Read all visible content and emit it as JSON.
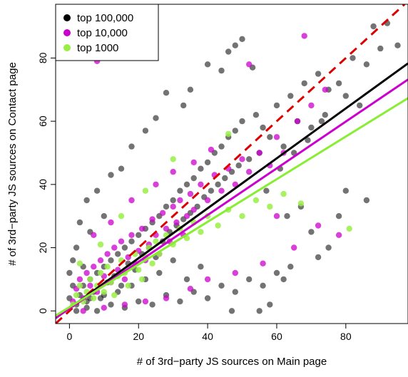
{
  "chart_data": {
    "type": "scatter",
    "title": "",
    "xlabel": "# of 3rd−party JS sources on Main page",
    "ylabel": "# of 3rd−party JS sources on Contact page",
    "xlim": [
      -4,
      98
    ],
    "ylim": [
      -4,
      97
    ],
    "x_ticks": [
      0,
      20,
      40,
      60,
      80
    ],
    "y_ticks": [
      0,
      20,
      40,
      60,
      80
    ],
    "x_tick_labels": [
      "0",
      "20",
      "40",
      "60",
      "80"
    ],
    "y_tick_labels": [
      "0",
      "20",
      "40",
      "60",
      "80"
    ],
    "grid": false,
    "legend_position": "top-left",
    "series": [
      {
        "name": "top 100,000",
        "color": "#000000",
        "marker": "circle",
        "alpha": 0.55,
        "points": [
          [
            2,
            2
          ],
          [
            3,
            5
          ],
          [
            4,
            8
          ],
          [
            5,
            3
          ],
          [
            6,
            10
          ],
          [
            7,
            6
          ],
          [
            8,
            12
          ],
          [
            9,
            4
          ],
          [
            10,
            14
          ],
          [
            11,
            9
          ],
          [
            12,
            16
          ],
          [
            13,
            11
          ],
          [
            14,
            18
          ],
          [
            15,
            8
          ],
          [
            16,
            20
          ],
          [
            17,
            15
          ],
          [
            18,
            22
          ],
          [
            19,
            13
          ],
          [
            20,
            24
          ],
          [
            21,
            18
          ],
          [
            22,
            26
          ],
          [
            23,
            20
          ],
          [
            24,
            28
          ],
          [
            25,
            17
          ],
          [
            26,
            30
          ],
          [
            27,
            22
          ],
          [
            28,
            33
          ],
          [
            29,
            25
          ],
          [
            30,
            35
          ],
          [
            31,
            27
          ],
          [
            32,
            38
          ],
          [
            33,
            29
          ],
          [
            34,
            40
          ],
          [
            35,
            31
          ],
          [
            36,
            42
          ],
          [
            37,
            33
          ],
          [
            38,
            45
          ],
          [
            39,
            36
          ],
          [
            40,
            47
          ],
          [
            41,
            38
          ],
          [
            42,
            50
          ],
          [
            43,
            40
          ],
          [
            44,
            52
          ],
          [
            45,
            42
          ],
          [
            46,
            55
          ],
          [
            47,
            44
          ],
          [
            48,
            57
          ],
          [
            49,
            46
          ],
          [
            50,
            60
          ],
          [
            52,
            48
          ],
          [
            54,
            62
          ],
          [
            55,
            50
          ],
          [
            56,
            58
          ],
          [
            58,
            55
          ],
          [
            60,
            65
          ],
          [
            62,
            52
          ],
          [
            64,
            68
          ],
          [
            66,
            60
          ],
          [
            68,
            72
          ],
          [
            70,
            58
          ],
          [
            72,
            75
          ],
          [
            74,
            62
          ],
          [
            75,
            70
          ],
          [
            78,
            72
          ],
          [
            80,
            68
          ],
          [
            82,
            80
          ],
          [
            84,
            65
          ],
          [
            86,
            78
          ],
          [
            88,
            90
          ],
          [
            90,
            83
          ],
          [
            92,
            91
          ],
          [
            95,
            84
          ],
          [
            80,
            38
          ],
          [
            78,
            30
          ],
          [
            86,
            35
          ],
          [
            72,
            17
          ],
          [
            75,
            20
          ],
          [
            62,
            10
          ],
          [
            70,
            25
          ],
          [
            58,
            2
          ],
          [
            50,
            86
          ],
          [
            48,
            84
          ],
          [
            44,
            76
          ],
          [
            46,
            82
          ],
          [
            40,
            78
          ],
          [
            53,
            77
          ],
          [
            35,
            70
          ],
          [
            28,
            69
          ],
          [
            33,
            65
          ],
          [
            25,
            61
          ],
          [
            22,
            57
          ],
          [
            18,
            52
          ],
          [
            15,
            45
          ],
          [
            12,
            43
          ],
          [
            8,
            38
          ],
          [
            5,
            35
          ],
          [
            10,
            30
          ],
          [
            3,
            28
          ],
          [
            6,
            25
          ],
          [
            2,
            20
          ],
          [
            1,
            16
          ],
          [
            4,
            14
          ],
          [
            0,
            12
          ],
          [
            1,
            8
          ],
          [
            0,
            4
          ],
          [
            2,
            0
          ],
          [
            5,
            1
          ],
          [
            8,
            0
          ],
          [
            12,
            2
          ],
          [
            16,
            1
          ],
          [
            20,
            3
          ],
          [
            24,
            2
          ],
          [
            28,
            5
          ],
          [
            32,
            3
          ],
          [
            36,
            6
          ],
          [
            40,
            4
          ],
          [
            44,
            8
          ],
          [
            48,
            6
          ],
          [
            52,
            10
          ],
          [
            56,
            8
          ],
          [
            60,
            12
          ],
          [
            64,
            14
          ],
          [
            55,
            0
          ],
          [
            63,
            30
          ],
          [
            67,
            33
          ],
          [
            57,
            38
          ],
          [
            61,
            45
          ],
          [
            65,
            50
          ],
          [
            69,
            54
          ],
          [
            73,
            60
          ],
          [
            47,
            0
          ],
          [
            38,
            14
          ],
          [
            34,
            10
          ],
          [
            30,
            16
          ],
          [
            26,
            12
          ],
          [
            22,
            10
          ],
          [
            18,
            8
          ],
          [
            14,
            6
          ],
          [
            10,
            5
          ],
          [
            6,
            4
          ]
        ]
      },
      {
        "name": "top 10,000",
        "color": "#cc00cc",
        "marker": "circle",
        "alpha": 0.75,
        "points": [
          [
            1,
            3
          ],
          [
            2,
            7
          ],
          [
            3,
            10
          ],
          [
            4,
            4
          ],
          [
            5,
            12
          ],
          [
            6,
            8
          ],
          [
            7,
            14
          ],
          [
            8,
            6
          ],
          [
            9,
            16
          ],
          [
            10,
            11
          ],
          [
            11,
            18
          ],
          [
            12,
            9
          ],
          [
            13,
            20
          ],
          [
            14,
            13
          ],
          [
            15,
            22
          ],
          [
            16,
            10
          ],
          [
            17,
            17
          ],
          [
            18,
            24
          ],
          [
            19,
            15
          ],
          [
            20,
            19
          ],
          [
            21,
            26
          ],
          [
            22,
            16
          ],
          [
            23,
            21
          ],
          [
            24,
            29
          ],
          [
            25,
            24
          ],
          [
            26,
            18
          ],
          [
            27,
            31
          ],
          [
            28,
            26
          ],
          [
            29,
            22
          ],
          [
            30,
            33
          ],
          [
            31,
            28
          ],
          [
            32,
            35
          ],
          [
            33,
            24
          ],
          [
            34,
            30
          ],
          [
            35,
            37
          ],
          [
            36,
            32
          ],
          [
            38,
            40
          ],
          [
            40,
            35
          ],
          [
            42,
            43
          ],
          [
            44,
            38
          ],
          [
            46,
            45
          ],
          [
            48,
            40
          ],
          [
            50,
            48
          ],
          [
            52,
            44
          ],
          [
            55,
            50
          ],
          [
            58,
            46
          ],
          [
            60,
            55
          ],
          [
            62,
            50
          ],
          [
            66,
            60
          ],
          [
            70,
            65
          ],
          [
            74,
            70
          ],
          [
            68,
            87
          ],
          [
            52,
            78
          ],
          [
            41,
            51
          ],
          [
            36,
            47
          ],
          [
            30,
            44
          ],
          [
            25,
            40
          ],
          [
            18,
            35
          ],
          [
            12,
            28
          ],
          [
            7,
            24
          ],
          [
            8,
            79
          ],
          [
            72,
            27
          ],
          [
            60,
            30
          ],
          [
            78,
            24
          ],
          [
            65,
            20
          ],
          [
            56,
            15
          ],
          [
            48,
            12
          ],
          [
            40,
            10
          ],
          [
            35,
            7
          ],
          [
            28,
            4
          ],
          [
            22,
            3
          ],
          [
            16,
            2
          ],
          [
            10,
            1
          ],
          [
            4,
            0
          ]
        ]
      },
      {
        "name": "top 1000",
        "color": "#99ee44",
        "marker": "circle",
        "alpha": 0.85,
        "points": [
          [
            1,
            2
          ],
          [
            2,
            5
          ],
          [
            3,
            8
          ],
          [
            4,
            3
          ],
          [
            5,
            6
          ],
          [
            6,
            10
          ],
          [
            7,
            4
          ],
          [
            8,
            8
          ],
          [
            9,
            12
          ],
          [
            10,
            6
          ],
          [
            11,
            14
          ],
          [
            12,
            9
          ],
          [
            13,
            5
          ],
          [
            14,
            11
          ],
          [
            15,
            16
          ],
          [
            16,
            12
          ],
          [
            17,
            8
          ],
          [
            18,
            14
          ],
          [
            19,
            18
          ],
          [
            20,
            13
          ],
          [
            21,
            10
          ],
          [
            22,
            17
          ],
          [
            23,
            20
          ],
          [
            24,
            15
          ],
          [
            25,
            22
          ],
          [
            26,
            18
          ],
          [
            28,
            24
          ],
          [
            30,
            21
          ],
          [
            32,
            26
          ],
          [
            34,
            23
          ],
          [
            36,
            28
          ],
          [
            38,
            25
          ],
          [
            40,
            30
          ],
          [
            43,
            27
          ],
          [
            46,
            32
          ],
          [
            50,
            30
          ],
          [
            54,
            35
          ],
          [
            58,
            33
          ],
          [
            62,
            37
          ],
          [
            67,
            34
          ],
          [
            81,
            26
          ],
          [
            46,
            56
          ],
          [
            30,
            48
          ],
          [
            22,
            38
          ],
          [
            15,
            30
          ],
          [
            9,
            21
          ],
          [
            3,
            15
          ]
        ]
      }
    ],
    "reference_lines": [
      {
        "name": "y = x",
        "color": "#dd0000",
        "dash": true,
        "x": [
          -4,
          97
        ],
        "y": [
          -4,
          97
        ]
      },
      {
        "name": "fit top 100,000",
        "color": "#000000",
        "dash": false,
        "x": [
          -4,
          98
        ],
        "y": [
          -2.3,
          78.3
        ]
      },
      {
        "name": "fit top 10,000",
        "color": "#cc00cc",
        "dash": false,
        "x": [
          -4,
          98
        ],
        "y": [
          -2.2,
          73.2
        ]
      },
      {
        "name": "fit top 1000",
        "color": "#88ee33",
        "dash": false,
        "x": [
          -4,
          98
        ],
        "y": [
          -1.5,
          67.3
        ]
      }
    ]
  }
}
